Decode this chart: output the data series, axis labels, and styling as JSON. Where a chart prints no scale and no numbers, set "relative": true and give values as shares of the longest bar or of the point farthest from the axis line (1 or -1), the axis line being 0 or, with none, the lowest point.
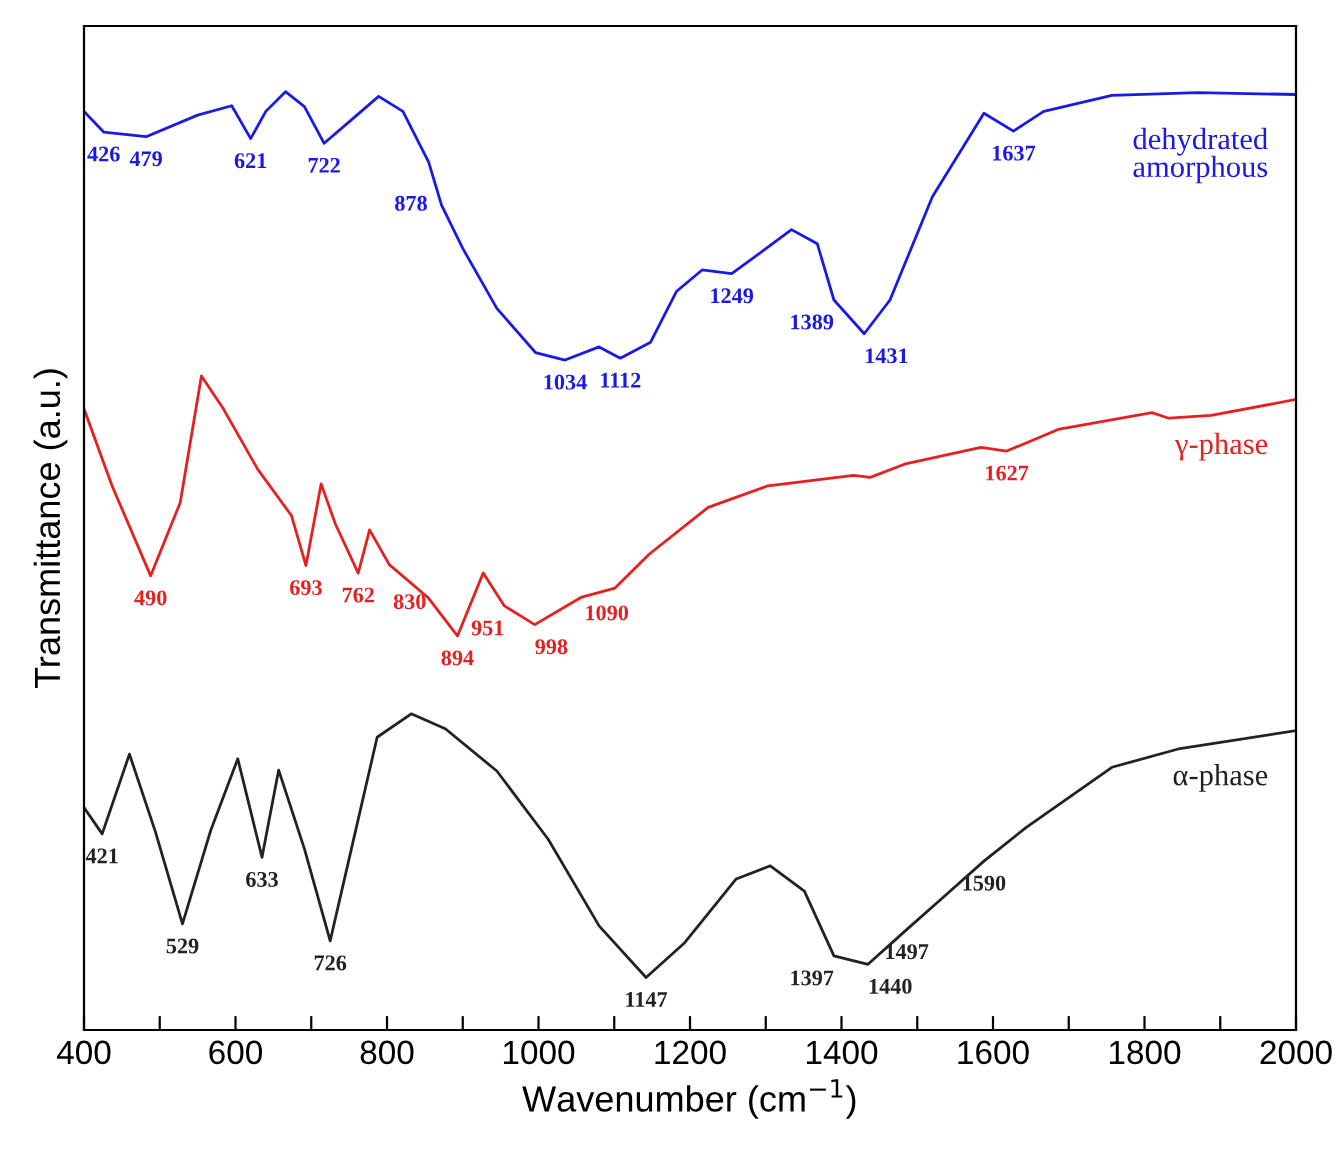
{
  "chart_data": {
    "type": "line",
    "relative": true,
    "xlabel": "Wavenumber (cm$^{−1}$)",
    "ylabel": "Transmittance (a.u.)",
    "xlim": [
      400,
      2000
    ],
    "xticks": [
      400,
      {
        "value": 500,
        "label": null
      },
      600,
      {
        "value": 700,
        "label": null
      },
      800,
      {
        "value": 900,
        "label": null
      },
      1000,
      {
        "value": 1100,
        "label": null
      },
      1200,
      {
        "value": 1300,
        "label": null
      },
      1400,
      {
        "value": 1500,
        "label": null
      },
      1600,
      {
        "value": 1700,
        "label": null
      },
      1800,
      {
        "value": 1900,
        "label": null
      },
      2000
    ],
    "tick_labels": "x",
    "grid": false,
    "legend": false,
    "marker": "none",
    "line_style": "solid",
    "series": [
      {
        "name": "dehydrated\namorphous",
        "color": "#1a1ae6",
        "x": [
          400,
          426,
          482,
          550,
          595,
          620,
          640,
          666,
          691,
          717,
          753,
          789,
          821,
          855,
          872,
          900,
          945,
          996,
          1035,
          1080,
          1108,
          1148,
          1182,
          1216,
          1255,
          1294,
          1334,
          1368,
          1390,
          1430,
          1464,
          1520,
          1588,
          1627,
          1667,
          1757,
          1870,
          2000
        ],
        "values": [
          0.979,
          0.957,
          0.952,
          0.975,
          0.985,
          0.95,
          0.979,
          1.0,
          0.984,
          0.945,
          0.97,
          0.995,
          0.979,
          0.925,
          0.879,
          0.833,
          0.769,
          0.722,
          0.714,
          0.728,
          0.716,
          0.733,
          0.787,
          0.81,
          0.806,
          0.829,
          0.853,
          0.838,
          0.778,
          0.742,
          0.778,
          0.888,
          0.977,
          0.958,
          0.979,
          0.996,
          0.999,
          0.997
        ]
      },
      {
        "name": "γ-phase",
        "color": "#e62020",
        "x": [
          400,
          437,
          488,
          527,
          555,
          584,
          629,
          674,
          693,
          713,
          732,
          762,
          777,
          803,
          854,
          893,
          927,
          955,
          995,
          1056,
          1101,
          1146,
          1224,
          1303,
          1416,
          1438,
          1483,
          1584,
          1618,
          1686,
          1810,
          1832,
          1888,
          2000
        ],
        "values": [
          0.662,
          0.58,
          0.484,
          0.562,
          0.697,
          0.662,
          0.598,
          0.548,
          0.495,
          0.582,
          0.539,
          0.487,
          0.533,
          0.496,
          0.461,
          0.42,
          0.487,
          0.452,
          0.432,
          0.461,
          0.471,
          0.507,
          0.557,
          0.58,
          0.591,
          0.589,
          0.603,
          0.621,
          0.617,
          0.64,
          0.658,
          0.652,
          0.655,
          0.672
        ]
      },
      {
        "name": "α-phase",
        "color": "#222222",
        "x": [
          400,
          424,
          460,
          494,
          530,
          567,
          603,
          635,
          657,
          691,
          725,
          753,
          787,
          832,
          877,
          945,
          1013,
          1080,
          1142,
          1193,
          1261,
          1306,
          1351,
          1390,
          1435,
          1486,
          1531,
          1588,
          1644,
          1757,
          1847,
          2000
        ],
        "values": [
          0.237,
          0.209,
          0.294,
          0.212,
          0.113,
          0.212,
          0.289,
          0.184,
          0.277,
          0.193,
          0.095,
          0.193,
          0.312,
          0.337,
          0.321,
          0.276,
          0.203,
          0.111,
          0.056,
          0.093,
          0.161,
          0.175,
          0.148,
          0.079,
          0.07,
          0.107,
          0.139,
          0.18,
          0.216,
          0.28,
          0.3,
          0.319
        ]
      }
    ],
    "annotations": [
      {
        "text": "426",
        "x": 426,
        "y": 0.957
      },
      {
        "text": "479",
        "x": 482,
        "y": 0.952
      },
      {
        "text": "621",
        "x": 620,
        "y": 0.95
      },
      {
        "text": "722",
        "x": 717,
        "y": 0.945
      },
      {
        "text": "878",
        "x": 872,
        "y": 0.879
      },
      {
        "text": "1034",
        "x": 1035,
        "y": 0.714
      },
      {
        "text": "1112",
        "x": 1108,
        "y": 0.716
      },
      {
        "text": "1249",
        "x": 1255,
        "y": 0.806
      },
      {
        "text": "1389",
        "x": 1390,
        "y": 0.778
      },
      {
        "text": "1431",
        "x": 1430,
        "y": 0.742
      },
      {
        "text": "1637",
        "x": 1627,
        "y": 0.958
      },
      {
        "text": "490",
        "x": 488,
        "y": 0.484
      },
      {
        "text": "693",
        "x": 693,
        "y": 0.495
      },
      {
        "text": "762",
        "x": 762,
        "y": 0.487
      },
      {
        "text": "830",
        "x": 830,
        "y": 0.48
      },
      {
        "text": "894",
        "x": 893,
        "y": 0.42
      },
      {
        "text": "951",
        "x": 955,
        "y": 0.452
      },
      {
        "text": "998",
        "x": 995,
        "y": 0.432
      },
      {
        "text": "1090",
        "x": 1090,
        "y": 0.468
      },
      {
        "text": "1627",
        "x": 1618,
        "y": 0.617
      },
      {
        "text": "421",
        "x": 424,
        "y": 0.209
      },
      {
        "text": "529",
        "x": 530,
        "y": 0.113
      },
      {
        "text": "633",
        "x": 635,
        "y": 0.184
      },
      {
        "text": "726",
        "x": 725,
        "y": 0.095
      },
      {
        "text": "1147",
        "x": 1142,
        "y": 0.056
      },
      {
        "text": "1397",
        "x": 1390,
        "y": 0.079
      },
      {
        "text": "1440",
        "x": 1435,
        "y": 0.07
      },
      {
        "text": "1497",
        "x": 1486,
        "y": 0.107
      },
      {
        "text": "1590",
        "x": 1588,
        "y": 0.18
      }
    ]
  }
}
